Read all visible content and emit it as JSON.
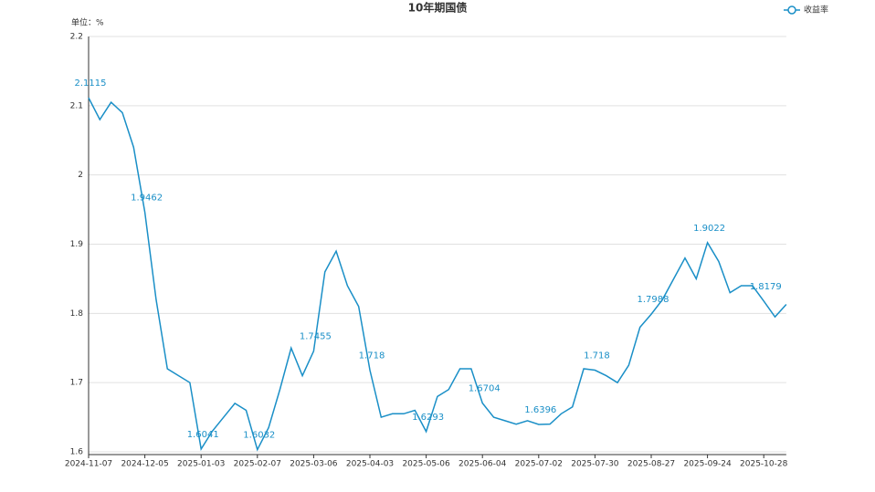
{
  "chart_data": {
    "type": "line",
    "title": "10年期国债",
    "unit_label": "单位：%",
    "categories": [
      "2024-11-07",
      null,
      null,
      null,
      null,
      "2024-12-05",
      null,
      null,
      null,
      null,
      "2025-01-03",
      null,
      null,
      null,
      null,
      "2025-02-07",
      null,
      null,
      null,
      null,
      "2025-03-06",
      null,
      null,
      null,
      null,
      "2025-04-03",
      null,
      null,
      null,
      null,
      "2025-05-06",
      null,
      null,
      null,
      null,
      "2025-06-04",
      null,
      null,
      null,
      null,
      "2025-07-02",
      null,
      null,
      null,
      null,
      "2025-07-30",
      null,
      null,
      null,
      null,
      "2025-08-27",
      null,
      null,
      null,
      null,
      "2025-09-24",
      null,
      null,
      null,
      null,
      "2025-10-28",
      null,
      null
    ],
    "series": [
      {
        "name": "收益率",
        "color": "#1a8fc7",
        "values": [
          2.1115,
          2.08,
          2.105,
          2.09,
          2.04,
          1.9462,
          1.82,
          1.72,
          1.71,
          1.7,
          1.6041,
          1.63,
          1.65,
          1.67,
          1.66,
          1.6032,
          1.635,
          1.69,
          1.75,
          1.71,
          1.7455,
          1.86,
          1.89,
          1.84,
          1.81,
          1.718,
          1.65,
          1.655,
          1.655,
          1.66,
          1.6293,
          1.68,
          1.69,
          1.72,
          1.72,
          1.6704,
          1.65,
          1.645,
          1.64,
          1.645,
          1.6396,
          1.64,
          1.655,
          1.665,
          1.72,
          1.718,
          1.71,
          1.7,
          1.725,
          1.78,
          1.7988,
          1.82,
          1.85,
          1.88,
          1.85,
          1.9022,
          1.875,
          1.83,
          1.84,
          1.84,
          1.8179,
          1.795,
          1.813
        ]
      }
    ],
    "ylim": [
      1.6,
      2.2
    ],
    "yticks": [
      1.6,
      1.7,
      1.8,
      1.9,
      2,
      2.1,
      2.2
    ],
    "grid": true,
    "legend": "top-right"
  }
}
